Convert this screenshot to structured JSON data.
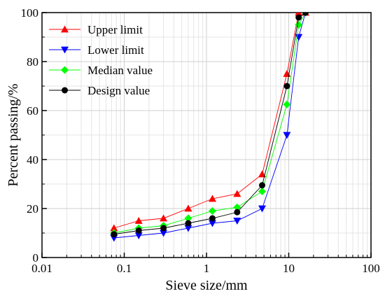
{
  "chart_data": {
    "type": "line",
    "xlabel": "Sieve size/mm",
    "ylabel": "Percent passing/%",
    "xscale": "log",
    "xlim": [
      0.01,
      100
    ],
    "ylim": [
      0,
      100
    ],
    "x_ticks": [
      0.01,
      0.1,
      1,
      10,
      100
    ],
    "x_tick_labels": [
      "0.01",
      "0.1",
      "1",
      "10",
      "100"
    ],
    "y_ticks": [
      0,
      20,
      40,
      60,
      80,
      100
    ],
    "y_tick_labels": [
      "0",
      "20",
      "40",
      "60",
      "80",
      "100"
    ],
    "grid": true,
    "legend_position": "top-left",
    "x": [
      0.075,
      0.15,
      0.3,
      0.6,
      1.18,
      2.36,
      4.75,
      9.5,
      13.2,
      16
    ],
    "series": [
      {
        "name": "Upper limit",
        "color": "#ff0000",
        "marker": "triangle-up",
        "values": [
          12,
          15,
          16,
          20,
          24,
          26,
          34,
          75,
          100,
          100
        ]
      },
      {
        "name": "Lower limit",
        "color": "#0000ff",
        "marker": "triangle-down",
        "values": [
          8,
          9,
          10,
          12,
          14,
          15,
          20,
          50,
          90,
          100
        ]
      },
      {
        "name": "Median value",
        "color": "#00ff00",
        "marker": "diamond",
        "values": [
          10,
          12,
          13,
          16,
          19,
          20.5,
          27,
          62.5,
          95,
          100
        ]
      },
      {
        "name": "Design value",
        "color": "#000000",
        "marker": "circle",
        "values": [
          9.5,
          11,
          12,
          14,
          16,
          18.5,
          29.5,
          70,
          98,
          100
        ]
      }
    ]
  }
}
